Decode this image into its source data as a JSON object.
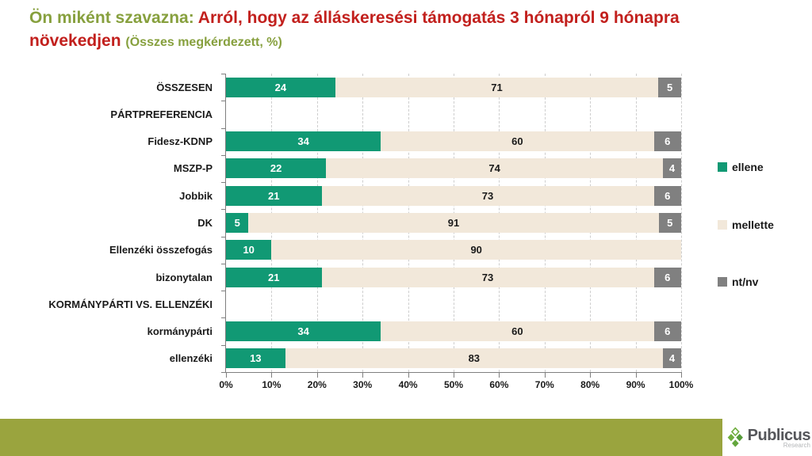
{
  "title": {
    "intro": "Ön miként szavazna:",
    "question_line1": "Arról, hogy az álláskeresési támogatás 3 hónapról 9 hónapra",
    "question_line2": "növekedjen",
    "note": "(Összes megkérdezett, %)"
  },
  "colors": {
    "title_green": "#87a03e",
    "title_red": "#c2201d",
    "footer_bar": "#9aa43e",
    "axis": "#7f7f7f",
    "grid": "#cdcdcd"
  },
  "chart_data": {
    "type": "bar",
    "variant": "horizontal_stacked_100",
    "grid": "vertical-dashed",
    "legend_position": "right",
    "x_axis": {
      "min": 0,
      "max": 100,
      "ticks": [
        "0%",
        "10%",
        "20%",
        "30%",
        "40%",
        "50%",
        "60%",
        "70%",
        "80%",
        "90%",
        "100%"
      ]
    },
    "categories": [
      {
        "label": "ÖSSZESEN",
        "header": false
      },
      {
        "label": "PÁRTPREFERENCIA",
        "header": true
      },
      {
        "label": "Fidesz-KDNP",
        "header": false
      },
      {
        "label": "MSZP-P",
        "header": false
      },
      {
        "label": "Jobbik",
        "header": false
      },
      {
        "label": "DK",
        "header": false
      },
      {
        "label": "Ellenzéki összefogás",
        "header": false
      },
      {
        "label": "bizonytalan",
        "header": false
      },
      {
        "label": "KORMÁNYPÁRTI VS. ELLENZÉKI",
        "header": true
      },
      {
        "label": "kormánypárti",
        "header": false
      },
      {
        "label": "ellenzéki",
        "header": false
      }
    ],
    "series": [
      {
        "name": "ellene",
        "color": "#119974",
        "label_color": "#ffffff",
        "values": [
          24,
          null,
          34,
          22,
          21,
          5,
          10,
          21,
          null,
          34,
          13
        ]
      },
      {
        "name": "mellette",
        "color": "#f2e8da",
        "label_color": "#1a1a1a",
        "values": [
          71,
          null,
          60,
          74,
          73,
          91,
          90,
          73,
          null,
          60,
          83
        ]
      },
      {
        "name": "nt/nv",
        "color": "#808080",
        "label_color": "#ffffff",
        "values": [
          5,
          null,
          6,
          4,
          6,
          5,
          0,
          6,
          null,
          6,
          4
        ]
      }
    ]
  },
  "footer": {
    "brand": "Publicus",
    "brand_sub": "Research"
  }
}
